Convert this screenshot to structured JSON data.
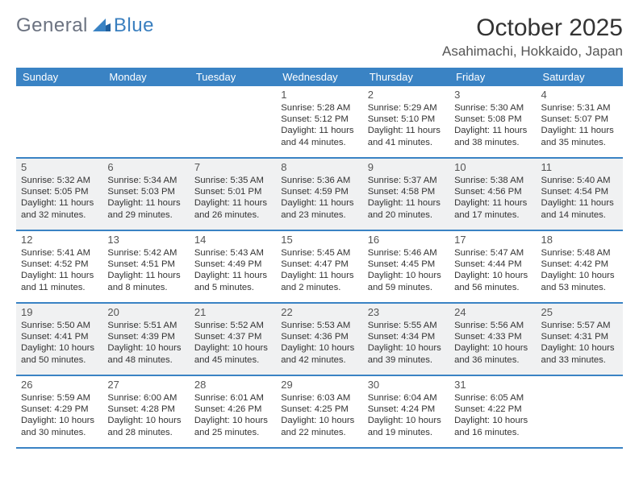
{
  "logo": {
    "general": "General",
    "blue": "Blue"
  },
  "title": "October 2025",
  "location": "Asahimachi, Hokkaido, Japan",
  "weekdays": [
    "Sunday",
    "Monday",
    "Tuesday",
    "Wednesday",
    "Thursday",
    "Friday",
    "Saturday"
  ],
  "colors": {
    "header_bg": "#3a83c4",
    "header_fg": "#ffffff",
    "alt_row_bg": "#f0f1f2",
    "week_divider": "#3a83c4",
    "logo_gray": "#6b7280",
    "logo_blue": "#3a7fbf",
    "text": "#333333"
  },
  "weeks": [
    {
      "alt": false,
      "days": [
        {
          "num": "",
          "sunrise": "",
          "sunset": "",
          "daylight": ""
        },
        {
          "num": "",
          "sunrise": "",
          "sunset": "",
          "daylight": ""
        },
        {
          "num": "",
          "sunrise": "",
          "sunset": "",
          "daylight": ""
        },
        {
          "num": "1",
          "sunrise": "Sunrise: 5:28 AM",
          "sunset": "Sunset: 5:12 PM",
          "daylight": "Daylight: 11 hours and 44 minutes."
        },
        {
          "num": "2",
          "sunrise": "Sunrise: 5:29 AM",
          "sunset": "Sunset: 5:10 PM",
          "daylight": "Daylight: 11 hours and 41 minutes."
        },
        {
          "num": "3",
          "sunrise": "Sunrise: 5:30 AM",
          "sunset": "Sunset: 5:08 PM",
          "daylight": "Daylight: 11 hours and 38 minutes."
        },
        {
          "num": "4",
          "sunrise": "Sunrise: 5:31 AM",
          "sunset": "Sunset: 5:07 PM",
          "daylight": "Daylight: 11 hours and 35 minutes."
        }
      ]
    },
    {
      "alt": true,
      "days": [
        {
          "num": "5",
          "sunrise": "Sunrise: 5:32 AM",
          "sunset": "Sunset: 5:05 PM",
          "daylight": "Daylight: 11 hours and 32 minutes."
        },
        {
          "num": "6",
          "sunrise": "Sunrise: 5:34 AM",
          "sunset": "Sunset: 5:03 PM",
          "daylight": "Daylight: 11 hours and 29 minutes."
        },
        {
          "num": "7",
          "sunrise": "Sunrise: 5:35 AM",
          "sunset": "Sunset: 5:01 PM",
          "daylight": "Daylight: 11 hours and 26 minutes."
        },
        {
          "num": "8",
          "sunrise": "Sunrise: 5:36 AM",
          "sunset": "Sunset: 4:59 PM",
          "daylight": "Daylight: 11 hours and 23 minutes."
        },
        {
          "num": "9",
          "sunrise": "Sunrise: 5:37 AM",
          "sunset": "Sunset: 4:58 PM",
          "daylight": "Daylight: 11 hours and 20 minutes."
        },
        {
          "num": "10",
          "sunrise": "Sunrise: 5:38 AM",
          "sunset": "Sunset: 4:56 PM",
          "daylight": "Daylight: 11 hours and 17 minutes."
        },
        {
          "num": "11",
          "sunrise": "Sunrise: 5:40 AM",
          "sunset": "Sunset: 4:54 PM",
          "daylight": "Daylight: 11 hours and 14 minutes."
        }
      ]
    },
    {
      "alt": false,
      "days": [
        {
          "num": "12",
          "sunrise": "Sunrise: 5:41 AM",
          "sunset": "Sunset: 4:52 PM",
          "daylight": "Daylight: 11 hours and 11 minutes."
        },
        {
          "num": "13",
          "sunrise": "Sunrise: 5:42 AM",
          "sunset": "Sunset: 4:51 PM",
          "daylight": "Daylight: 11 hours and 8 minutes."
        },
        {
          "num": "14",
          "sunrise": "Sunrise: 5:43 AM",
          "sunset": "Sunset: 4:49 PM",
          "daylight": "Daylight: 11 hours and 5 minutes."
        },
        {
          "num": "15",
          "sunrise": "Sunrise: 5:45 AM",
          "sunset": "Sunset: 4:47 PM",
          "daylight": "Daylight: 11 hours and 2 minutes."
        },
        {
          "num": "16",
          "sunrise": "Sunrise: 5:46 AM",
          "sunset": "Sunset: 4:45 PM",
          "daylight": "Daylight: 10 hours and 59 minutes."
        },
        {
          "num": "17",
          "sunrise": "Sunrise: 5:47 AM",
          "sunset": "Sunset: 4:44 PM",
          "daylight": "Daylight: 10 hours and 56 minutes."
        },
        {
          "num": "18",
          "sunrise": "Sunrise: 5:48 AM",
          "sunset": "Sunset: 4:42 PM",
          "daylight": "Daylight: 10 hours and 53 minutes."
        }
      ]
    },
    {
      "alt": true,
      "days": [
        {
          "num": "19",
          "sunrise": "Sunrise: 5:50 AM",
          "sunset": "Sunset: 4:41 PM",
          "daylight": "Daylight: 10 hours and 50 minutes."
        },
        {
          "num": "20",
          "sunrise": "Sunrise: 5:51 AM",
          "sunset": "Sunset: 4:39 PM",
          "daylight": "Daylight: 10 hours and 48 minutes."
        },
        {
          "num": "21",
          "sunrise": "Sunrise: 5:52 AM",
          "sunset": "Sunset: 4:37 PM",
          "daylight": "Daylight: 10 hours and 45 minutes."
        },
        {
          "num": "22",
          "sunrise": "Sunrise: 5:53 AM",
          "sunset": "Sunset: 4:36 PM",
          "daylight": "Daylight: 10 hours and 42 minutes."
        },
        {
          "num": "23",
          "sunrise": "Sunrise: 5:55 AM",
          "sunset": "Sunset: 4:34 PM",
          "daylight": "Daylight: 10 hours and 39 minutes."
        },
        {
          "num": "24",
          "sunrise": "Sunrise: 5:56 AM",
          "sunset": "Sunset: 4:33 PM",
          "daylight": "Daylight: 10 hours and 36 minutes."
        },
        {
          "num": "25",
          "sunrise": "Sunrise: 5:57 AM",
          "sunset": "Sunset: 4:31 PM",
          "daylight": "Daylight: 10 hours and 33 minutes."
        }
      ]
    },
    {
      "alt": false,
      "days": [
        {
          "num": "26",
          "sunrise": "Sunrise: 5:59 AM",
          "sunset": "Sunset: 4:29 PM",
          "daylight": "Daylight: 10 hours and 30 minutes."
        },
        {
          "num": "27",
          "sunrise": "Sunrise: 6:00 AM",
          "sunset": "Sunset: 4:28 PM",
          "daylight": "Daylight: 10 hours and 28 minutes."
        },
        {
          "num": "28",
          "sunrise": "Sunrise: 6:01 AM",
          "sunset": "Sunset: 4:26 PM",
          "daylight": "Daylight: 10 hours and 25 minutes."
        },
        {
          "num": "29",
          "sunrise": "Sunrise: 6:03 AM",
          "sunset": "Sunset: 4:25 PM",
          "daylight": "Daylight: 10 hours and 22 minutes."
        },
        {
          "num": "30",
          "sunrise": "Sunrise: 6:04 AM",
          "sunset": "Sunset: 4:24 PM",
          "daylight": "Daylight: 10 hours and 19 minutes."
        },
        {
          "num": "31",
          "sunrise": "Sunrise: 6:05 AM",
          "sunset": "Sunset: 4:22 PM",
          "daylight": "Daylight: 10 hours and 16 minutes."
        },
        {
          "num": "",
          "sunrise": "",
          "sunset": "",
          "daylight": ""
        }
      ]
    }
  ]
}
